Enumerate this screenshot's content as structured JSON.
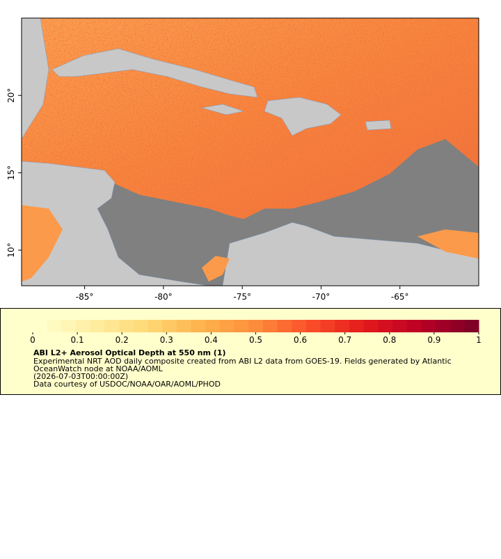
{
  "map": {
    "xlim": [
      -89,
      -60
    ],
    "ylim": [
      7.7,
      25
    ],
    "xticks": [
      {
        "value": -85,
        "label": "-85°"
      },
      {
        "value": -80,
        "label": "-80°"
      },
      {
        "value": -75,
        "label": "-75°"
      },
      {
        "value": -70,
        "label": "-70°"
      },
      {
        "value": -65,
        "label": "-65°"
      }
    ],
    "yticks": [
      {
        "value": 10,
        "label": "10°"
      },
      {
        "value": 15,
        "label": "15°"
      },
      {
        "value": 20,
        "label": "20°"
      }
    ]
  },
  "colorbar": {
    "range": [
      0,
      1
    ],
    "ticks": [
      0,
      0.1,
      0.2,
      0.3,
      0.4,
      0.5,
      0.6,
      0.7,
      0.8,
      0.9,
      1
    ],
    "colors": [
      "#ffffcc",
      "#ffeda0",
      "#fed976",
      "#feb24c",
      "#fd8d3c",
      "#fc4e2a",
      "#e31a1c",
      "#bd0026",
      "#800026"
    ]
  },
  "legend": {
    "title": "ABI L2+ Aerosol Optical Depth at 550 nm (1)",
    "lines": [
      "Experimental NRT AOD daily composite created from ABI L2 data from GOES-19. Fields generated by Atlantic",
      "OceanWatch node at NOAA/AOML",
      "(2026-07-03T00:00:00Z)",
      "Data courtesy of USDOC/NOAA/OAR/AOML/PHOD"
    ]
  }
}
